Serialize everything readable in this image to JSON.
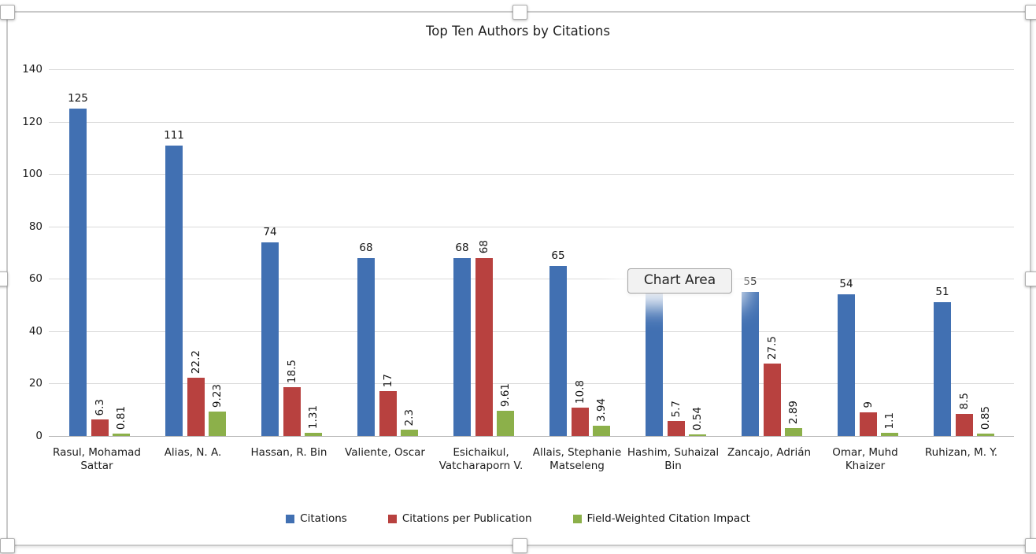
{
  "tooltip": {
    "label": "Chart Area"
  },
  "chart_data": {
    "type": "bar",
    "title": "Top Ten Authors by Citations",
    "categories": [
      "Rasul, Mohamad Sattar",
      "Alias, N. A.",
      "Hassan, R. Bin",
      "Valiente, Oscar",
      "Esichaikul, Vatcharaporn V.",
      "Allais, Stephanie Matseleng",
      "Hashim, Suhaizal Bin",
      "Zancajo, Adrián",
      "Omar, Muhd Khaizer",
      "Ruhizan, M. Y."
    ],
    "series": [
      {
        "name": "Citations",
        "color": "#4170b2",
        "values": [
          125,
          111,
          74,
          68,
          68,
          65,
          58,
          55,
          54,
          51
        ],
        "labels": [
          "125",
          "111",
          "74",
          "68",
          "68",
          "65",
          "",
          "55",
          "54",
          "51"
        ],
        "label_orientation": "horizontal"
      },
      {
        "name": "Citations per Publication",
        "color": "#b8413f",
        "values": [
          6.3,
          22.2,
          18.5,
          17,
          68,
          10.8,
          5.7,
          27.5,
          9,
          8.5
        ],
        "labels": [
          "6.3",
          "22.2",
          "18.5",
          "17",
          "68",
          "10.8",
          "5.7",
          "27.5",
          "9",
          "8.5"
        ],
        "label_orientation": "vertical"
      },
      {
        "name": "Field-Weighted Citation Impact",
        "color": "#8cb04a",
        "values": [
          0.81,
          9.23,
          1.31,
          2.3,
          9.61,
          3.94,
          0.54,
          2.89,
          1.1,
          0.85
        ],
        "labels": [
          "0.81",
          "9.23",
          "1.31",
          "2.3",
          "9.61",
          "3.94",
          "0.54",
          "2.89",
          "1.1",
          "0.85"
        ],
        "label_orientation": "vertical"
      }
    ],
    "y_axis": {
      "min": 0,
      "max": 140,
      "step": 20,
      "ticks": [
        "0",
        "20",
        "40",
        "60",
        "80",
        "100",
        "120",
        "140"
      ]
    },
    "grid": true,
    "legend_position": "bottom",
    "notes": "Hashim, Suhaizal Bin citations bar top and data label are obscured by the Chart Area tooltip; value estimated from bar height."
  }
}
